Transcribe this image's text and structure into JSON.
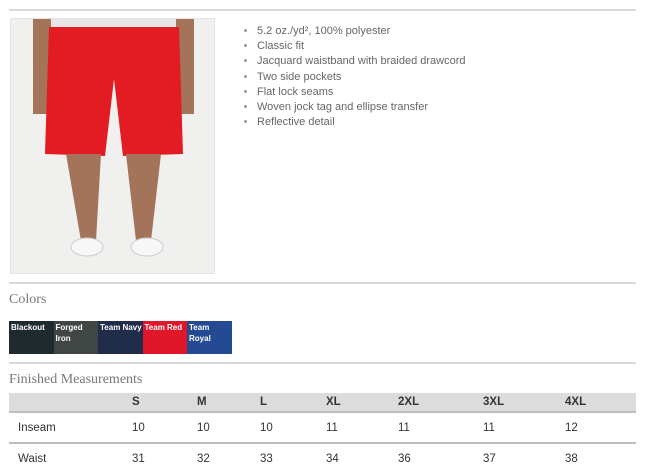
{
  "features": [
    "5.2 oz./yd², 100% polyester",
    "Classic fit",
    "Jacquard waistband with braided drawcord",
    "Two side pockets",
    "Flat lock seams",
    "Woven jock tag and ellipse transfer",
    "Reflective detail"
  ],
  "colors_heading": "Colors",
  "colors": [
    {
      "name": "Blackout",
      "hex": "#1f2a2e"
    },
    {
      "name": "Forged Iron",
      "hex": "#3f4644"
    },
    {
      "name": "Team Navy",
      "hex": "#1f2c4a"
    },
    {
      "name": "Team Red",
      "hex": "#e0162b"
    },
    {
      "name": "Team Royal",
      "hex": "#234a92"
    }
  ],
  "measurements": {
    "heading": "Finished Measurements",
    "sizes": [
      "S",
      "M",
      "L",
      "XL",
      "2XL",
      "3XL",
      "4XL"
    ],
    "rows": [
      {
        "label": "Inseam",
        "values": [
          "10",
          "10",
          "10",
          "11",
          "11",
          "11",
          "12"
        ]
      },
      {
        "label": "Waist",
        "values": [
          "31",
          "32",
          "33",
          "34",
          "36",
          "37",
          "38"
        ]
      }
    ]
  },
  "product_color": "#e31b23"
}
